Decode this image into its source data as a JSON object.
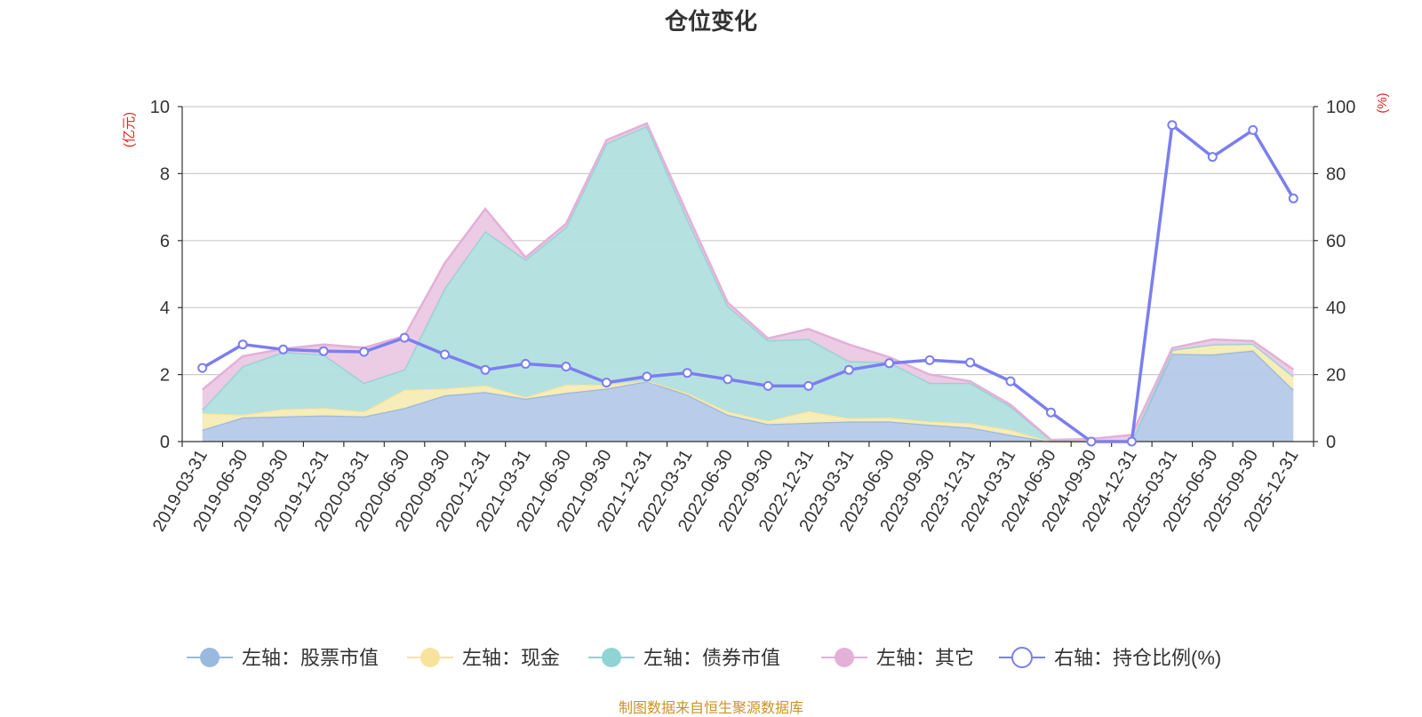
{
  "chart_data": {
    "type": "area",
    "title": "仓位变化",
    "source": "制图数据来自恒生聚源数据库",
    "categories": [
      "2019-03-31",
      "2019-06-30",
      "2019-09-30",
      "2019-12-31",
      "2020-03-31",
      "2020-06-30",
      "2020-09-30",
      "2020-12-31",
      "2021-03-31",
      "2021-06-30",
      "2021-09-30",
      "2021-12-31",
      "2022-03-31",
      "2022-06-30",
      "2022-09-30",
      "2022-12-31",
      "2023-03-31",
      "2023-06-30",
      "2023-09-30",
      "2023-12-31",
      "2024-03-31",
      "2024-06-30",
      "2024-09-30",
      "2024-12-31",
      "2025-03-31",
      "2025-06-30",
      "2025-09-30",
      "2025-12-31"
    ],
    "y_left": {
      "label": "(亿元)",
      "min": 0,
      "max": 10,
      "ticks": [
        "0",
        "2",
        "4",
        "6",
        "8",
        "10"
      ]
    },
    "y_right": {
      "label": "(%)",
      "min": 0,
      "max": 100,
      "ticks": [
        "0",
        "20",
        "40",
        "60",
        "80",
        "100"
      ]
    },
    "stacked_series": [
      {
        "name": "左轴：股票市值",
        "color": "#9ab8e0",
        "fill": "#b5c9e8",
        "values": [
          0.35,
          0.72,
          0.75,
          0.78,
          0.75,
          1.0,
          1.38,
          1.48,
          1.28,
          1.45,
          1.58,
          1.8,
          1.4,
          0.8,
          0.52,
          0.56,
          0.6,
          0.6,
          0.5,
          0.42,
          0.2,
          0,
          0,
          0,
          2.62,
          2.6,
          2.72,
          1.55
        ]
      },
      {
        "name": "左轴：现金",
        "color": "#f7e39c",
        "fill": "#f7ecb5",
        "values": [
          0.5,
          0.08,
          0.22,
          0.22,
          0.15,
          0.55,
          0.2,
          0.2,
          0.05,
          0.25,
          0.12,
          0.02,
          0.05,
          0.1,
          0.1,
          0.35,
          0.1,
          0.12,
          0.1,
          0.13,
          0.15,
          0,
          0,
          0,
          0.12,
          0.3,
          0.2,
          0.4
        ]
      },
      {
        "name": "左轴：债券市值",
        "color": "#8fd3d3",
        "fill": "#b2dfdf",
        "values": [
          0.1,
          1.45,
          1.7,
          1.6,
          0.85,
          0.6,
          3.0,
          4.6,
          4.1,
          4.7,
          7.2,
          7.6,
          5.2,
          3.15,
          2.4,
          2.15,
          1.7,
          1.65,
          1.15,
          1.2,
          0.7,
          0.05,
          0,
          0,
          0,
          0,
          0,
          0
        ]
      },
      {
        "name": "左轴：其它",
        "color": "#e3b0d8",
        "fill": "#ebc9e3",
        "values": [
          0.6,
          0.3,
          0.1,
          0.3,
          1.05,
          1.0,
          0.75,
          0.67,
          0.07,
          0.1,
          0.1,
          0.08,
          0.15,
          0.1,
          0.06,
          0.3,
          0.5,
          0.15,
          0.25,
          0.05,
          0.05,
          0,
          0.08,
          0.2,
          0.05,
          0.15,
          0.08,
          0.2
        ]
      }
    ],
    "line_series": {
      "name": "右轴：持仓比例(%)",
      "color": "#7b7ef0",
      "values": [
        22,
        29,
        27.5,
        27,
        26.8,
        31,
        26,
        21.4,
        23.2,
        22.4,
        17.6,
        19.4,
        20.5,
        18.6,
        16.6,
        16.6,
        21.4,
        23.4,
        24.3,
        23.6,
        18,
        8.7,
        0,
        0,
        94.5,
        85,
        93,
        72.6
      ]
    }
  }
}
